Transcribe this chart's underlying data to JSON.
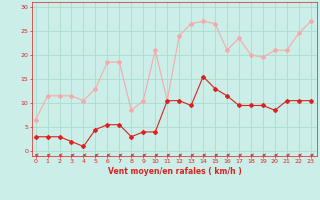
{
  "x": [
    0,
    1,
    2,
    3,
    4,
    5,
    6,
    7,
    8,
    9,
    10,
    11,
    12,
    13,
    14,
    15,
    16,
    17,
    18,
    19,
    20,
    21,
    22,
    23
  ],
  "vent_moyen": [
    3,
    3,
    3,
    2,
    1,
    4.5,
    5.5,
    5.5,
    3,
    4,
    4,
    10.5,
    10.5,
    9.5,
    15.5,
    13,
    11.5,
    9.5,
    9.5,
    9.5,
    8.5,
    10.5,
    10.5,
    10.5
  ],
  "vent_rafales": [
    6.5,
    11.5,
    11.5,
    11.5,
    10.5,
    13,
    18.5,
    18.5,
    8.5,
    10.5,
    21,
    10.5,
    24,
    26.5,
    27,
    26.5,
    21,
    23.5,
    20,
    19.5,
    21,
    21,
    24.5,
    27
  ],
  "xlabel": "Vent moyen/en rafales ( km/h )",
  "ylim_min": -1,
  "ylim_max": 31,
  "xlim_min": -0.3,
  "xlim_max": 23.5,
  "yticks": [
    0,
    5,
    10,
    15,
    20,
    25,
    30
  ],
  "xticks": [
    0,
    1,
    2,
    3,
    4,
    5,
    6,
    7,
    8,
    9,
    10,
    11,
    12,
    13,
    14,
    15,
    16,
    17,
    18,
    19,
    20,
    21,
    22,
    23
  ],
  "color_moyen": "#dd2020",
  "color_rafales": "#f5aaaa",
  "bg_color": "#cceee8",
  "grid_color": "#aaddcc",
  "tick_color": "#dd2020",
  "label_color": "#dd2020"
}
